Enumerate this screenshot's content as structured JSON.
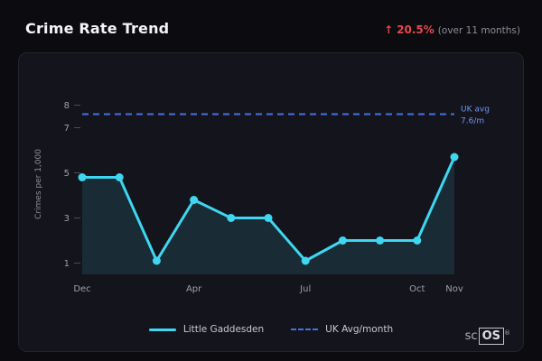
{
  "header": {
    "title": "Crime Rate Trend",
    "trend_arrow": "↑",
    "trend_value": "20.5%",
    "trend_note": "(over 11 months)"
  },
  "chart_data": {
    "type": "line",
    "title": "Crime Rate Trend",
    "ylabel": "Crimes per 1,000",
    "categories": [
      "Dec",
      "",
      "",
      "Apr",
      "",
      "",
      "Jul",
      "",
      "",
      "Oct",
      "Nov"
    ],
    "x_tick_indices": [
      0,
      3,
      6,
      9,
      10
    ],
    "series": [
      {
        "name": "Little Gaddesden",
        "values": [
          4.8,
          4.8,
          1.1,
          3.8,
          3.0,
          3.0,
          1.1,
          2.0,
          2.0,
          2.0,
          5.7
        ],
        "color": "#3ed6f0"
      },
      {
        "name": "UK Avg/month",
        "type": "reference",
        "value": 7.6,
        "color": "#4472e0",
        "label_lines": [
          "UK avg",
          "7.6/m"
        ]
      }
    ],
    "y_ticks": [
      1,
      3,
      5,
      7,
      8
    ],
    "ylim": [
      0.5,
      8.5
    ],
    "grid": false,
    "legend_position": "bottom"
  },
  "legend": {
    "series_label": "Little Gaddesden",
    "reference_label": "UK Avg/month"
  },
  "logo": {
    "prefix": "sc",
    "boxed": "OS",
    "registered": "®"
  },
  "colors": {
    "accent": "#3ed6f0",
    "reference": "#4472e0",
    "negative": "#e5484d",
    "background": "#0b0b10",
    "card": "#14141c"
  }
}
